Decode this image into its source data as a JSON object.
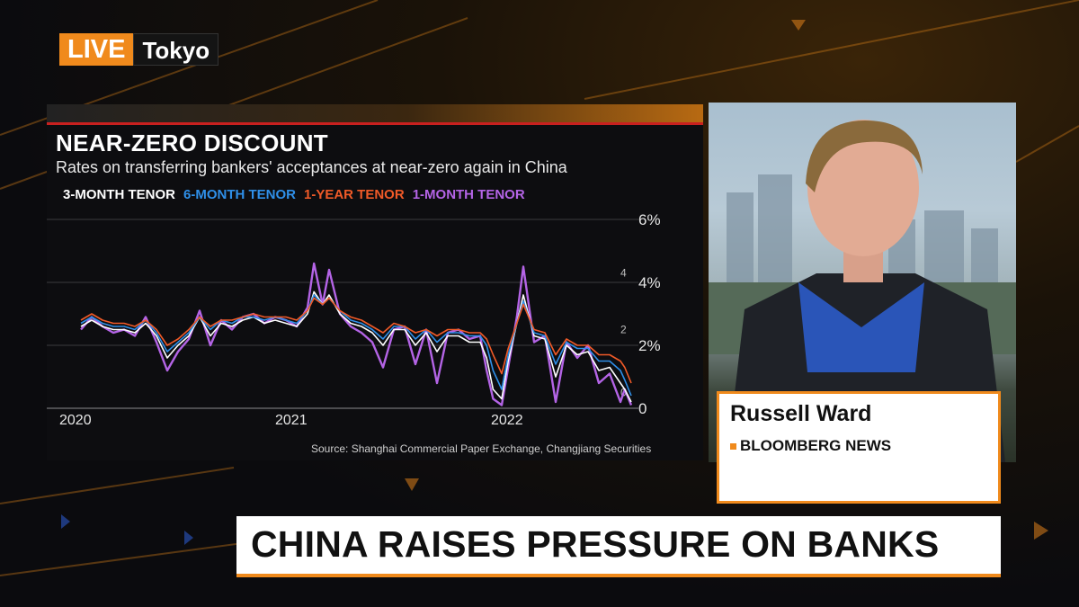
{
  "broadcast": {
    "live_label": "LIVE",
    "location": "Tokyo",
    "headline": "CHINA RAISES PRESSURE ON BANKS"
  },
  "chart_panel": {
    "title": "NEAR-ZERO DISCOUNT",
    "subtitle": "Rates on transferring bankers' acceptances at near-zero again in China",
    "source": "Source: Shanghai Commercial Paper Exchange, Changjiang Securities"
  },
  "speaker": {
    "name": "Russell Ward",
    "org": "BLOOMBERG NEWS"
  },
  "colors": {
    "accent": "#f08a1c",
    "red_rule": "#c8201f"
  },
  "chart_data": {
    "type": "line",
    "title": "NEAR-ZERO DISCOUNT",
    "subtitle": "Rates on transferring bankers' acceptances at near-zero again in China",
    "xlim": [
      2020.0,
      2022.55
    ],
    "ylim": [
      0,
      6
    ],
    "x_ticks": [
      {
        "value": 2020,
        "label": "2020"
      },
      {
        "value": 2021,
        "label": "2021"
      },
      {
        "value": 2022,
        "label": "2022"
      }
    ],
    "y_ticks": [
      {
        "value": 6,
        "label": "6%"
      },
      {
        "value": 4,
        "label": "4%"
      },
      {
        "value": 2,
        "label": "2%"
      },
      {
        "value": 0,
        "label": "0"
      }
    ],
    "y_grid": [
      6,
      4,
      2
    ],
    "right_axis_markers": [
      {
        "value": 4.3,
        "label": "4"
      },
      {
        "value": 2.5,
        "label": "2"
      },
      {
        "value": 0.5,
        "label": "0"
      }
    ],
    "series": [
      {
        "name": "1-MONTH TENOR",
        "color": "#b464e6",
        "width": 2.4,
        "x": [
          2020.0,
          2020.05,
          2020.1,
          2020.15,
          2020.2,
          2020.25,
          2020.3,
          2020.35,
          2020.4,
          2020.45,
          2020.5,
          2020.55,
          2020.6,
          2020.65,
          2020.7,
          2020.75,
          2020.8,
          2020.85,
          2020.9,
          2020.95,
          2021.0,
          2021.05,
          2021.08,
          2021.12,
          2021.15,
          2021.2,
          2021.25,
          2021.3,
          2021.35,
          2021.4,
          2021.45,
          2021.5,
          2021.55,
          2021.6,
          2021.65,
          2021.7,
          2021.75,
          2021.8,
          2021.85,
          2021.88,
          2021.91,
          2021.95,
          2021.98,
          2022.02,
          2022.05,
          2022.1,
          2022.15,
          2022.2,
          2022.25,
          2022.3,
          2022.35,
          2022.4,
          2022.45,
          2022.5,
          2022.52,
          2022.55
        ],
        "y": [
          2.5,
          2.9,
          2.6,
          2.4,
          2.5,
          2.3,
          2.9,
          2.1,
          1.2,
          1.8,
          2.2,
          3.1,
          2.0,
          2.8,
          2.5,
          2.9,
          3.0,
          2.7,
          2.9,
          2.8,
          2.6,
          3.2,
          4.6,
          3.3,
          4.4,
          3.0,
          2.6,
          2.4,
          2.1,
          1.3,
          2.5,
          2.6,
          1.4,
          2.5,
          0.8,
          2.4,
          2.5,
          2.2,
          2.3,
          1.2,
          0.3,
          0.1,
          1.3,
          2.9,
          4.5,
          2.1,
          2.3,
          0.2,
          2.1,
          1.6,
          2.0,
          0.8,
          1.1,
          0.2,
          0.6,
          0.1
        ]
      },
      {
        "name": "3-MONTH TENOR",
        "color": "#ffffff",
        "width": 1.6,
        "x": [
          2020.0,
          2020.05,
          2020.1,
          2020.15,
          2020.2,
          2020.25,
          2020.3,
          2020.35,
          2020.4,
          2020.45,
          2020.5,
          2020.55,
          2020.6,
          2020.65,
          2020.7,
          2020.75,
          2020.8,
          2020.85,
          2020.9,
          2020.95,
          2021.0,
          2021.05,
          2021.08,
          2021.12,
          2021.15,
          2021.2,
          2021.25,
          2021.3,
          2021.35,
          2021.4,
          2021.45,
          2021.5,
          2021.55,
          2021.6,
          2021.65,
          2021.7,
          2021.75,
          2021.8,
          2021.85,
          2021.88,
          2021.91,
          2021.95,
          2021.98,
          2022.02,
          2022.05,
          2022.1,
          2022.15,
          2022.2,
          2022.25,
          2022.3,
          2022.35,
          2022.4,
          2022.45,
          2022.5,
          2022.52,
          2022.55
        ],
        "y": [
          2.6,
          2.8,
          2.6,
          2.5,
          2.5,
          2.4,
          2.7,
          2.3,
          1.6,
          2.0,
          2.3,
          2.9,
          2.3,
          2.7,
          2.6,
          2.8,
          2.9,
          2.7,
          2.8,
          2.7,
          2.6,
          3.0,
          3.7,
          3.3,
          3.6,
          3.0,
          2.7,
          2.6,
          2.4,
          2.0,
          2.5,
          2.5,
          2.0,
          2.4,
          1.8,
          2.3,
          2.3,
          2.1,
          2.1,
          1.6,
          0.6,
          0.3,
          1.5,
          2.7,
          3.6,
          2.3,
          2.2,
          1.0,
          2.0,
          1.7,
          1.8,
          1.2,
          1.3,
          0.8,
          0.6,
          0.2
        ]
      },
      {
        "name": "6-MONTH TENOR",
        "color": "#2f8fe8",
        "width": 1.6,
        "x": [
          2020.0,
          2020.05,
          2020.1,
          2020.15,
          2020.2,
          2020.25,
          2020.3,
          2020.35,
          2020.4,
          2020.45,
          2020.5,
          2020.55,
          2020.6,
          2020.65,
          2020.7,
          2020.75,
          2020.8,
          2020.85,
          2020.9,
          2020.95,
          2021.0,
          2021.05,
          2021.08,
          2021.12,
          2021.15,
          2021.2,
          2021.25,
          2021.3,
          2021.35,
          2021.4,
          2021.45,
          2021.5,
          2021.55,
          2021.6,
          2021.65,
          2021.7,
          2021.75,
          2021.8,
          2021.85,
          2021.88,
          2021.91,
          2021.95,
          2021.98,
          2022.02,
          2022.05,
          2022.1,
          2022.15,
          2022.2,
          2022.25,
          2022.3,
          2022.35,
          2022.4,
          2022.45,
          2022.5,
          2022.52,
          2022.55
        ],
        "y": [
          2.7,
          2.9,
          2.7,
          2.6,
          2.6,
          2.5,
          2.8,
          2.4,
          1.8,
          2.1,
          2.4,
          2.9,
          2.5,
          2.8,
          2.7,
          2.9,
          2.9,
          2.8,
          2.9,
          2.8,
          2.7,
          3.1,
          3.6,
          3.3,
          3.5,
          3.1,
          2.8,
          2.7,
          2.5,
          2.2,
          2.6,
          2.6,
          2.2,
          2.5,
          2.1,
          2.4,
          2.4,
          2.3,
          2.3,
          2.0,
          1.2,
          0.6,
          1.7,
          2.7,
          3.4,
          2.4,
          2.3,
          1.4,
          2.1,
          1.9,
          1.9,
          1.5,
          1.5,
          1.2,
          0.9,
          0.4
        ]
      },
      {
        "name": "1-YEAR TENOR",
        "color": "#f05a28",
        "width": 1.6,
        "x": [
          2020.0,
          2020.05,
          2020.1,
          2020.15,
          2020.2,
          2020.25,
          2020.3,
          2020.35,
          2020.4,
          2020.45,
          2020.5,
          2020.55,
          2020.6,
          2020.65,
          2020.7,
          2020.75,
          2020.8,
          2020.85,
          2020.9,
          2020.95,
          2021.0,
          2021.05,
          2021.08,
          2021.12,
          2021.15,
          2021.2,
          2021.25,
          2021.3,
          2021.35,
          2021.4,
          2021.45,
          2021.5,
          2021.55,
          2021.6,
          2021.65,
          2021.7,
          2021.75,
          2021.8,
          2021.85,
          2021.88,
          2021.91,
          2021.95,
          2021.98,
          2022.02,
          2022.05,
          2022.1,
          2022.15,
          2022.2,
          2022.25,
          2022.3,
          2022.35,
          2022.4,
          2022.45,
          2022.5,
          2022.52,
          2022.55
        ],
        "y": [
          2.8,
          3.0,
          2.8,
          2.7,
          2.7,
          2.6,
          2.8,
          2.5,
          2.0,
          2.2,
          2.5,
          2.9,
          2.6,
          2.8,
          2.8,
          2.9,
          3.0,
          2.9,
          2.9,
          2.9,
          2.8,
          3.1,
          3.5,
          3.3,
          3.5,
          3.1,
          2.9,
          2.8,
          2.6,
          2.4,
          2.7,
          2.6,
          2.4,
          2.5,
          2.3,
          2.5,
          2.5,
          2.4,
          2.4,
          2.2,
          1.7,
          1.1,
          1.9,
          2.7,
          3.3,
          2.5,
          2.4,
          1.7,
          2.2,
          2.0,
          2.0,
          1.7,
          1.7,
          1.5,
          1.3,
          0.8
        ]
      }
    ],
    "legend_order": [
      "3-MONTH TENOR",
      "6-MONTH TENOR",
      "1-YEAR TENOR",
      "1-MONTH TENOR"
    ],
    "legend_colors": {
      "3-MONTH TENOR": "#ffffff",
      "6-MONTH TENOR": "#2f8fe8",
      "1-YEAR TENOR": "#f05a28",
      "1-MONTH TENOR": "#b464e6"
    },
    "legend_placement": "top-left",
    "grid": true
  }
}
